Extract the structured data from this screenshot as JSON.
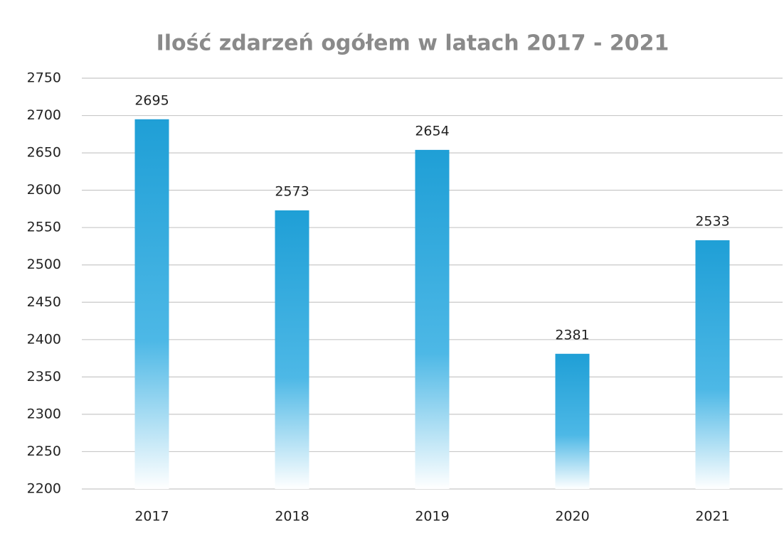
{
  "chart_data": {
    "type": "bar",
    "title": "Ilość zdarzeń ogółem w latach 2017 - 2021",
    "categories": [
      "2017",
      "2018",
      "2019",
      "2020",
      "2021"
    ],
    "values": [
      2695,
      2573,
      2654,
      2381,
      2533
    ],
    "color": "#1f9fd6",
    "ylim": [
      2200,
      2750
    ],
    "yticks": [
      2200,
      2250,
      2300,
      2350,
      2400,
      2450,
      2500,
      2550,
      2600,
      2650,
      2700,
      2750
    ],
    "grid": true
  }
}
